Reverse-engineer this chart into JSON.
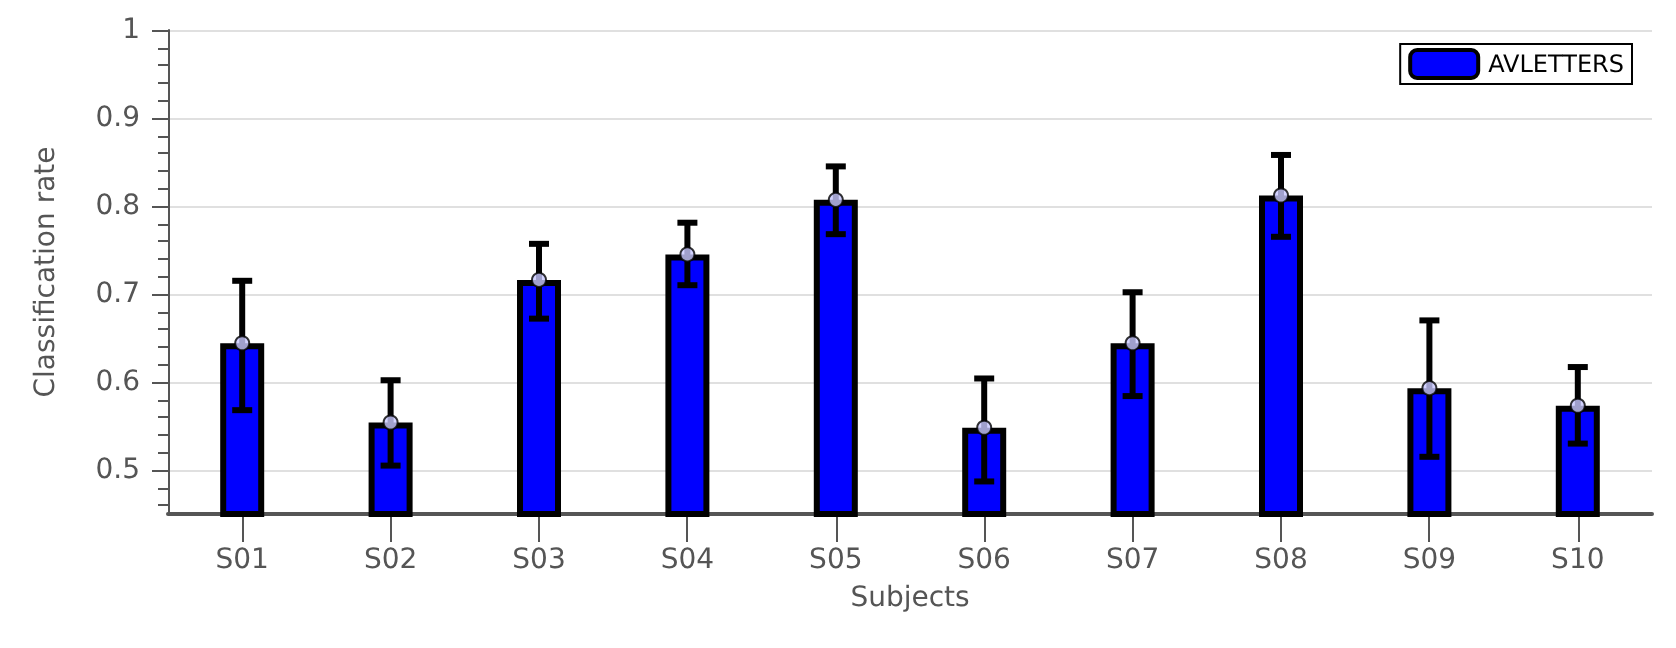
{
  "chart_data": {
    "type": "bar",
    "xlabel": "Subjects",
    "ylabel": "Classification rate",
    "categories": [
      "S01",
      "S02",
      "S03",
      "S04",
      "S05",
      "S06",
      "S07",
      "S08",
      "S09",
      "S10"
    ],
    "series": [
      {
        "name": "AVLETTERS",
        "color": "#0000ff",
        "values": [
          0.644,
          0.554,
          0.716,
          0.745,
          0.807,
          0.548,
          0.644,
          0.812,
          0.593,
          0.573
        ],
        "errors": [
          [
            0.568,
            0.715
          ],
          [
            0.505,
            0.602
          ],
          [
            0.672,
            0.757
          ],
          [
            0.71,
            0.781
          ],
          [
            0.768,
            0.845
          ],
          [
            0.487,
            0.604
          ],
          [
            0.584,
            0.702
          ],
          [
            0.765,
            0.858
          ],
          [
            0.515,
            0.67
          ],
          [
            0.53,
            0.617
          ]
        ]
      },
      {
        "type": "scatter",
        "color": "#c8c8ff",
        "x": [
          "S01",
          "S02",
          "S03",
          "S04",
          "S05",
          "S06",
          "S07",
          "S08",
          "S09",
          "S10"
        ],
        "values": [
          0.644,
          0.554,
          0.716,
          0.745,
          0.807,
          0.548,
          0.644,
          0.812,
          0.593,
          0.573
        ]
      }
    ],
    "ylim": [
      0.45,
      1
    ],
    "yticks": [
      0.5,
      0.6,
      0.7,
      0.8,
      0.9,
      1
    ],
    "grid": "y",
    "legend": "top right",
    "marker": "circle"
  }
}
